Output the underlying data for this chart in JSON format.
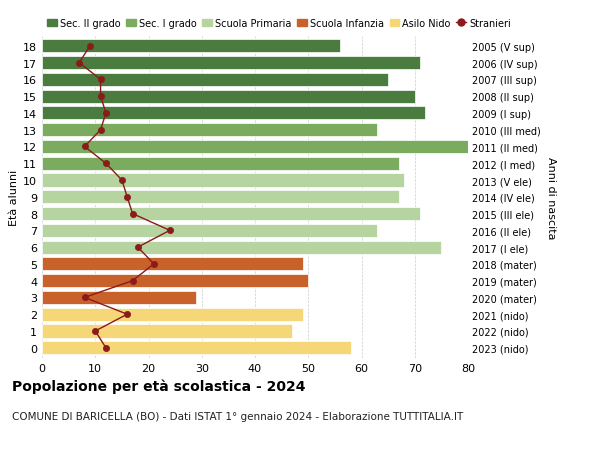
{
  "ages": [
    18,
    17,
    16,
    15,
    14,
    13,
    12,
    11,
    10,
    9,
    8,
    7,
    6,
    5,
    4,
    3,
    2,
    1,
    0
  ],
  "years": [
    "2005 (V sup)",
    "2006 (IV sup)",
    "2007 (III sup)",
    "2008 (II sup)",
    "2009 (I sup)",
    "2010 (III med)",
    "2011 (II med)",
    "2012 (I med)",
    "2013 (V ele)",
    "2014 (IV ele)",
    "2015 (III ele)",
    "2016 (II ele)",
    "2017 (I ele)",
    "2018 (mater)",
    "2019 (mater)",
    "2020 (mater)",
    "2021 (nido)",
    "2022 (nido)",
    "2023 (nido)"
  ],
  "bar_values": [
    56,
    71,
    65,
    70,
    72,
    63,
    80,
    67,
    68,
    67,
    71,
    63,
    75,
    49,
    50,
    29,
    49,
    47,
    58
  ],
  "bar_colors": [
    "#4a7c3f",
    "#4a7c3f",
    "#4a7c3f",
    "#4a7c3f",
    "#4a7c3f",
    "#7aab5e",
    "#7aab5e",
    "#7aab5e",
    "#b5d4a0",
    "#b5d4a0",
    "#b5d4a0",
    "#b5d4a0",
    "#b5d4a0",
    "#c8622a",
    "#c8622a",
    "#c8622a",
    "#f5d778",
    "#f5d778",
    "#f5d778"
  ],
  "stranieri_values": [
    9,
    7,
    11,
    11,
    12,
    11,
    8,
    12,
    15,
    16,
    17,
    24,
    18,
    21,
    17,
    8,
    16,
    10,
    12
  ],
  "stranieri_color": "#8b1a1a",
  "title": "Popolazione per età scolastica - 2024",
  "subtitle": "COMUNE DI BARICELLA (BO) - Dati ISTAT 1° gennaio 2024 - Elaborazione TUTTITALIA.IT",
  "ylabel_left": "Età alunni",
  "ylabel_right": "Anni di nascita",
  "xlim": [
    0,
    80
  ],
  "xticks": [
    0,
    10,
    20,
    30,
    40,
    50,
    60,
    70,
    80
  ],
  "legend_labels": [
    "Sec. II grado",
    "Sec. I grado",
    "Scuola Primaria",
    "Scuola Infanzia",
    "Asilo Nido",
    "Stranieri"
  ],
  "legend_colors": [
    "#4a7c3f",
    "#7aab5e",
    "#b5d4a0",
    "#c8622a",
    "#f5d778",
    "#8b1a1a"
  ],
  "bg_color": "#ffffff",
  "bar_height": 0.78,
  "grid_color": "#cccccc"
}
